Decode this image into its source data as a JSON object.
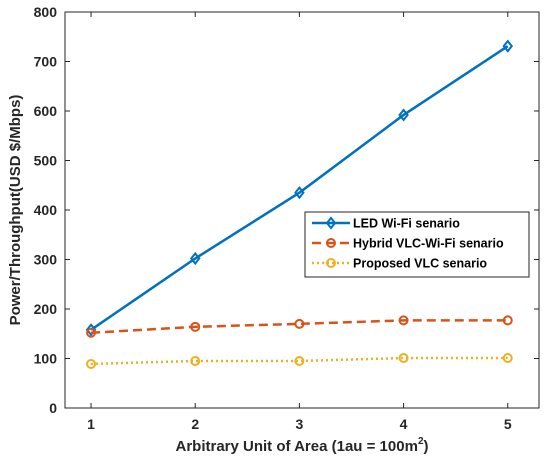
{
  "chart_data": {
    "type": "line",
    "x": [
      1,
      2,
      3,
      4,
      5
    ],
    "xlabel": "Arbitrary Unit of Area (1au = 100m",
    "xlabel_superscript": "2",
    "xlabel_suffix": ")",
    "ylabel": "Power/Throughput(USD $/Mbps)",
    "xlim": [
      0.75,
      5.3
    ],
    "ylim": [
      0,
      800
    ],
    "xticks": [
      "1",
      "2",
      "3",
      "4",
      "5"
    ],
    "yticks": [
      "0",
      "100",
      "200",
      "300",
      "400",
      "500",
      "600",
      "700",
      "800"
    ],
    "grid": false,
    "legend_position": "center-right",
    "series": [
      {
        "name": "LED Wi-Fi senario",
        "values": [
          158,
          302,
          435,
          592,
          731
        ],
        "color": "#0072BD",
        "style": "solid",
        "marker": "diamond"
      },
      {
        "name": "Hybrid VLC-Wi-Fi senario",
        "values": [
          152,
          164,
          170,
          177,
          177
        ],
        "color": "#D95319",
        "style": "dashed",
        "marker": "circle"
      },
      {
        "name": "Proposed VLC senario",
        "values": [
          89,
          95,
          95,
          101,
          101
        ],
        "color": "#EDB120",
        "style": "dotted",
        "marker": "circle"
      }
    ]
  }
}
